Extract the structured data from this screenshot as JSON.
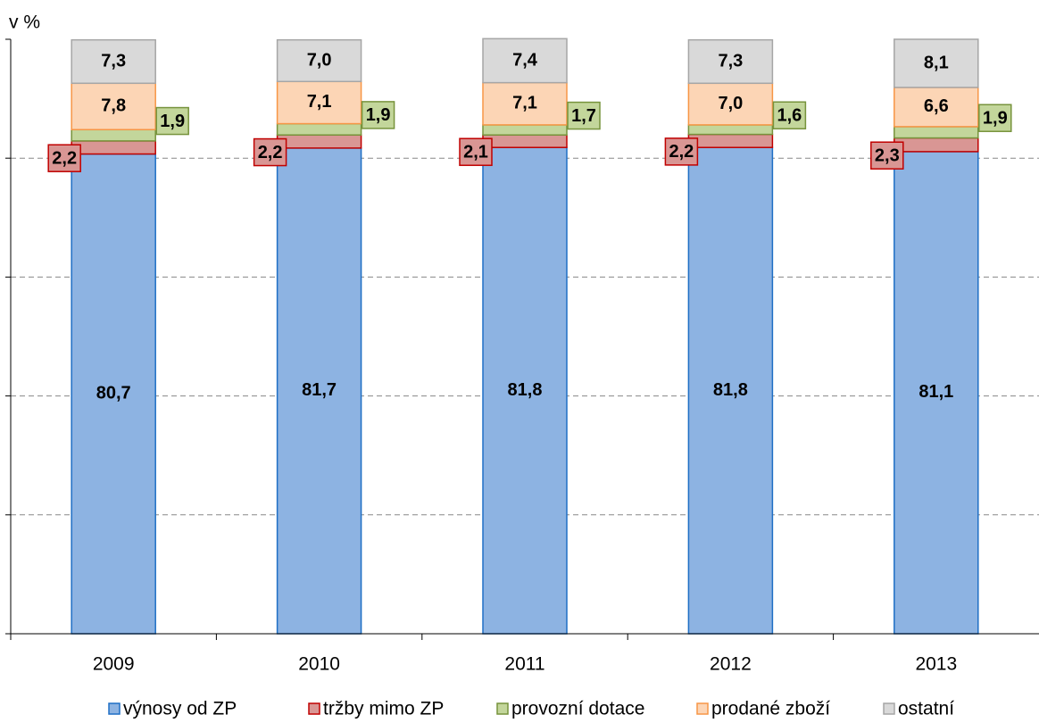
{
  "chart_data": {
    "type": "stacked_bar",
    "y_label": "v %",
    "categories": [
      "2009",
      "2010",
      "2011",
      "2012",
      "2013"
    ],
    "ylim": [
      0,
      100
    ],
    "yticks": [
      0,
      20,
      40,
      60,
      80,
      100
    ],
    "grid": true,
    "legend": "bottom",
    "series": [
      {
        "name": "výnosy od ZP",
        "color": "#8db3e2",
        "values": [
          80.7,
          81.7,
          81.8,
          81.8,
          81.1
        ],
        "value_labels": [
          "80,7",
          "81,7",
          "81,8",
          "81,8",
          "81,1"
        ]
      },
      {
        "name": "tržby mimo ZP",
        "color": "#d99694",
        "values": [
          2.2,
          2.2,
          2.1,
          2.2,
          2.3
        ],
        "value_labels": [
          "2,2",
          "2,2",
          "2,1",
          "2,2",
          "2,3"
        ]
      },
      {
        "name": "provozní dotace",
        "color": "#c3d69b",
        "values": [
          1.9,
          1.9,
          1.7,
          1.6,
          1.9
        ],
        "value_labels": [
          "1,9",
          "1,9",
          "1,7",
          "1,6",
          "1,9"
        ]
      },
      {
        "name": "prodané zboží",
        "color": "#fcd5b5",
        "values": [
          7.8,
          7.1,
          7.1,
          7.0,
          6.6
        ],
        "value_labels": [
          "7,8",
          "7,1",
          "7,1",
          "7,0",
          "6,6"
        ]
      },
      {
        "name": "ostatní",
        "color": "#d9d9d9",
        "values": [
          7.3,
          7.0,
          7.4,
          7.3,
          8.1
        ],
        "value_labels": [
          "7,3",
          "7,0",
          "7,4",
          "7,3",
          "8,1"
        ]
      }
    ]
  }
}
